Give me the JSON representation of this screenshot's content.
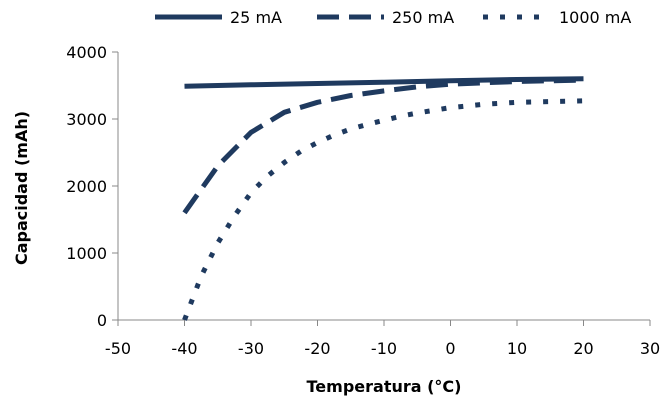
{
  "chart_data": {
    "type": "line",
    "title": "",
    "xlabel": "Temperatura (°C)",
    "ylabel": "Capacidad (mAh)",
    "xlim": [
      -50,
      30
    ],
    "ylim": [
      0,
      4000
    ],
    "x_ticks": [
      -50,
      -40,
      -30,
      -20,
      -10,
      0,
      10,
      20,
      30
    ],
    "y_ticks": [
      0,
      1000,
      2000,
      3000,
      4000
    ],
    "grid": false,
    "legend_position": "top",
    "series": [
      {
        "name": "25 mA",
        "style": "solid",
        "color": "#1f3a5f",
        "x": [
          -40,
          -30,
          -20,
          -10,
          0,
          10,
          20
        ],
        "y": [
          3490,
          3510,
          3530,
          3550,
          3570,
          3590,
          3600
        ]
      },
      {
        "name": "250 mA",
        "style": "dashed",
        "color": "#1f3a5f",
        "x": [
          -40,
          -35,
          -30,
          -25,
          -20,
          -15,
          -10,
          -5,
          0,
          5,
          10,
          15,
          20
        ],
        "y": [
          1600,
          2300,
          2800,
          3100,
          3250,
          3350,
          3420,
          3480,
          3520,
          3540,
          3560,
          3570,
          3580
        ]
      },
      {
        "name": "1000 mA",
        "style": "dotted",
        "color": "#1f3a5f",
        "x": [
          -40,
          -37.5,
          -35,
          -32.5,
          -30,
          -27.5,
          -25,
          -22.5,
          -20,
          -17.5,
          -15,
          -12.5,
          -10,
          -7.5,
          -5,
          -2.5,
          0,
          5,
          10,
          15,
          20
        ],
        "y": [
          0,
          650,
          1150,
          1550,
          1900,
          2150,
          2350,
          2520,
          2650,
          2760,
          2850,
          2920,
          2980,
          3040,
          3090,
          3130,
          3170,
          3220,
          3250,
          3260,
          3270
        ]
      }
    ]
  }
}
